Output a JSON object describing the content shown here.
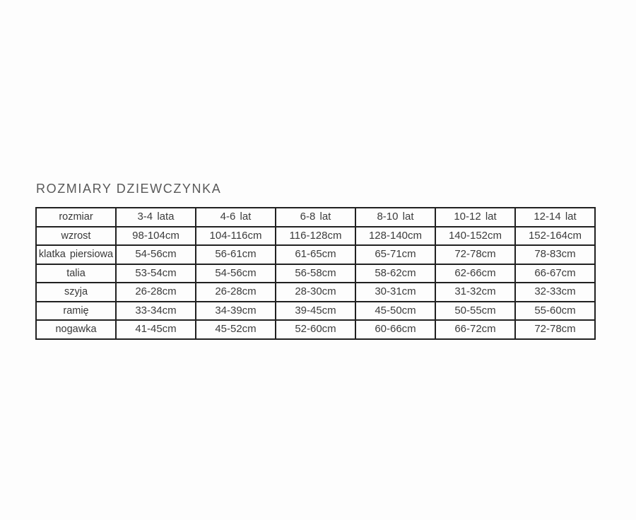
{
  "title": "ROZMIARY DZIEWCZYNKA",
  "chart_data": {
    "type": "table",
    "title": "ROZMIARY DZIEWCZYNKA",
    "unit": "cm",
    "rows": [
      {
        "label": "rozmiar",
        "values": [
          "3-4 lata",
          "4-6 lat",
          "6-8 lat",
          "8-10 lat",
          "10-12 lat",
          "12-14 lat"
        ]
      },
      {
        "label": "wzrost",
        "values": [
          "98-104cm",
          "104-116cm",
          "116-128cm",
          "128-140cm",
          "140-152cm",
          "152-164cm"
        ]
      },
      {
        "label": "klatka piersiowa",
        "values": [
          "54-56cm",
          "56-61cm",
          "61-65cm",
          "65-71cm",
          "72-78cm",
          "78-83cm"
        ]
      },
      {
        "label": "talia",
        "values": [
          "53-54cm",
          "54-56cm",
          "56-58cm",
          "58-62cm",
          "62-66cm",
          "66-67cm"
        ]
      },
      {
        "label": "szyja",
        "values": [
          "26-28cm",
          "26-28cm",
          "28-30cm",
          "30-31cm",
          "31-32cm",
          "32-33cm"
        ]
      },
      {
        "label": "ramię",
        "values": [
          "33-34cm",
          "34-39cm",
          "39-45cm",
          "45-50cm",
          "50-55cm",
          "55-60cm"
        ]
      },
      {
        "label": "nogawka",
        "values": [
          "41-45cm",
          "45-52cm",
          "52-60cm",
          "60-66cm",
          "66-72cm",
          "72-78cm"
        ]
      }
    ]
  },
  "colors": {
    "background": "#fdfdfd",
    "table_border": "#212121",
    "title_text": "#595959",
    "cell_text": "#3c3c3c"
  }
}
